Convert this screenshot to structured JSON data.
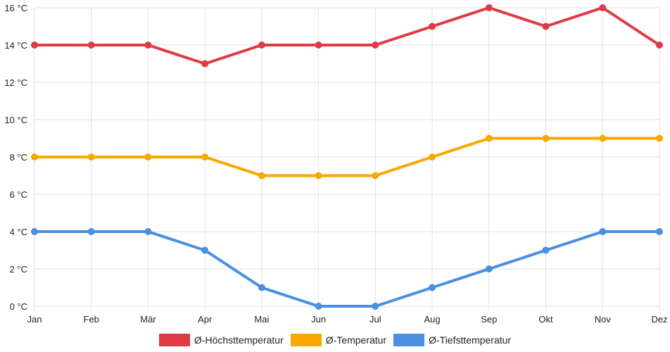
{
  "chart_data": {
    "type": "line",
    "title": "",
    "xlabel": "",
    "ylabel": "",
    "categories": [
      "Jan",
      "Feb",
      "Mär",
      "Apr",
      "Mai",
      "Jun",
      "Jul",
      "Aug",
      "Sep",
      "Okt",
      "Nov",
      "Dez"
    ],
    "ylim": [
      0,
      16
    ],
    "y_ticks": [
      0,
      2,
      4,
      6,
      8,
      10,
      12,
      14,
      16
    ],
    "y_tick_suffix": " °C",
    "grid": true,
    "legend_position": "bottom",
    "series": [
      {
        "name": "Ø-Höchsttemperatur",
        "color": "#e03a45",
        "values": [
          14,
          14,
          14,
          13,
          14,
          14,
          14,
          15,
          16,
          15,
          16,
          14
        ]
      },
      {
        "name": "Ø-Temperatur",
        "color": "#f9a800",
        "values": [
          8,
          8,
          8,
          8,
          7,
          7,
          7,
          8,
          9,
          9,
          9,
          9
        ]
      },
      {
        "name": "Ø-Tiefsttemperatur",
        "color": "#4a8fe0",
        "values": [
          4,
          4,
          4,
          3,
          1,
          0,
          0,
          1,
          2,
          3,
          4,
          4
        ]
      }
    ]
  }
}
